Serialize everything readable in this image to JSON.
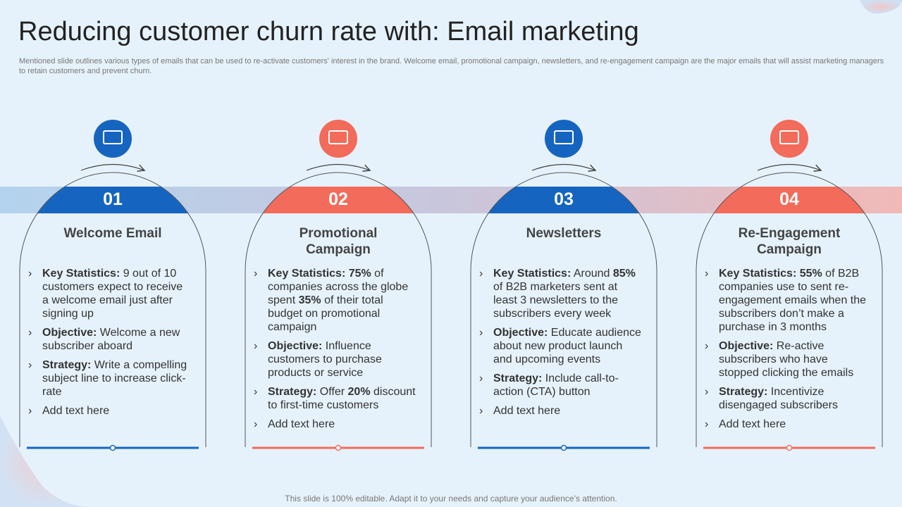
{
  "header": {
    "title": "Reducing customer churn rate with: Email marketing",
    "subtitle": "Mentioned slide outlines various types of emails that can be used to re-activate customers' interest in the brand. Welcome email, promotional campaign, newsletters, and re-engagement campaign are the major emails that will assist marketing managers to retain customers and prevent churn."
  },
  "cards": [
    {
      "number": "01",
      "title": "Welcome Email",
      "color": "#1565c0",
      "bullets": [
        [
          {
            "text": "Key Statistics:",
            "bold": true
          },
          {
            "text": "  9 out of 10 customers expect to receive a welcome email just after signing up",
            "bold": false
          }
        ],
        [
          {
            "text": "Objective:",
            "bold": true
          },
          {
            "text": " Welcome a new subscriber aboard",
            "bold": false
          }
        ],
        [
          {
            "text": "Strategy:",
            "bold": true
          },
          {
            "text": " Write a compelling subject line to increase click-rate",
            "bold": false
          }
        ],
        [
          {
            "text": "Add text here",
            "bold": false
          }
        ]
      ]
    },
    {
      "number": "02",
      "title": "Promotional Campaign",
      "color": "#f26b5b",
      "bullets": [
        [
          {
            "text": "Key Statistics: 75%",
            "bold": true
          },
          {
            "text": " of companies across the globe spent ",
            "bold": false
          },
          {
            "text": "35%",
            "bold": true
          },
          {
            "text": " of their total budget on promotional campaign",
            "bold": false
          }
        ],
        [
          {
            "text": "Objective:",
            "bold": true
          },
          {
            "text": " Influence customers to purchase products or service",
            "bold": false
          }
        ],
        [
          {
            "text": "Strategy:",
            "bold": true
          },
          {
            "text": " Offer ",
            "bold": false
          },
          {
            "text": "20%",
            "bold": true
          },
          {
            "text": " discount to first-time customers",
            "bold": false
          }
        ],
        [
          {
            "text": "Add text here",
            "bold": false
          }
        ]
      ]
    },
    {
      "number": "03",
      "title": "Newsletters",
      "color": "#1565c0",
      "bullets": [
        [
          {
            "text": "Key Statistics:",
            "bold": true
          },
          {
            "text": " Around ",
            "bold": false
          },
          {
            "text": "85%",
            "bold": true
          },
          {
            "text": " of B2B marketers sent at least 3 newsletters to the subscribers every week",
            "bold": false
          }
        ],
        [
          {
            "text": "Objective:",
            "bold": true
          },
          {
            "text": " Educate audience about new product launch and upcoming events",
            "bold": false
          }
        ],
        [
          {
            "text": "Strategy:",
            "bold": true
          },
          {
            "text": " Include call-to-action (CTA) button",
            "bold": false
          }
        ],
        [
          {
            "text": "Add text here",
            "bold": false
          }
        ]
      ]
    },
    {
      "number": "04",
      "title": "Re-Engagement Campaign",
      "color": "#f26b5b",
      "bullets": [
        [
          {
            "text": "Key Statistics: 55%",
            "bold": true
          },
          {
            "text": " of B2B companies use to sent re-engagement emails when the subscribers don’t make a purchase in 3 months",
            "bold": false
          }
        ],
        [
          {
            "text": "Objective:",
            "bold": true
          },
          {
            "text": " Re-active subscribers who have stopped clicking the emails",
            "bold": false
          }
        ],
        [
          {
            "text": "Strategy:",
            "bold": true
          },
          {
            "text": " Incentivize disengaged subscribers",
            "bold": false
          }
        ],
        [
          {
            "text": "Add text here",
            "bold": false
          }
        ]
      ]
    }
  ],
  "footer": "This slide is 100% editable. Adapt it to your needs and capture your audience’s attention."
}
